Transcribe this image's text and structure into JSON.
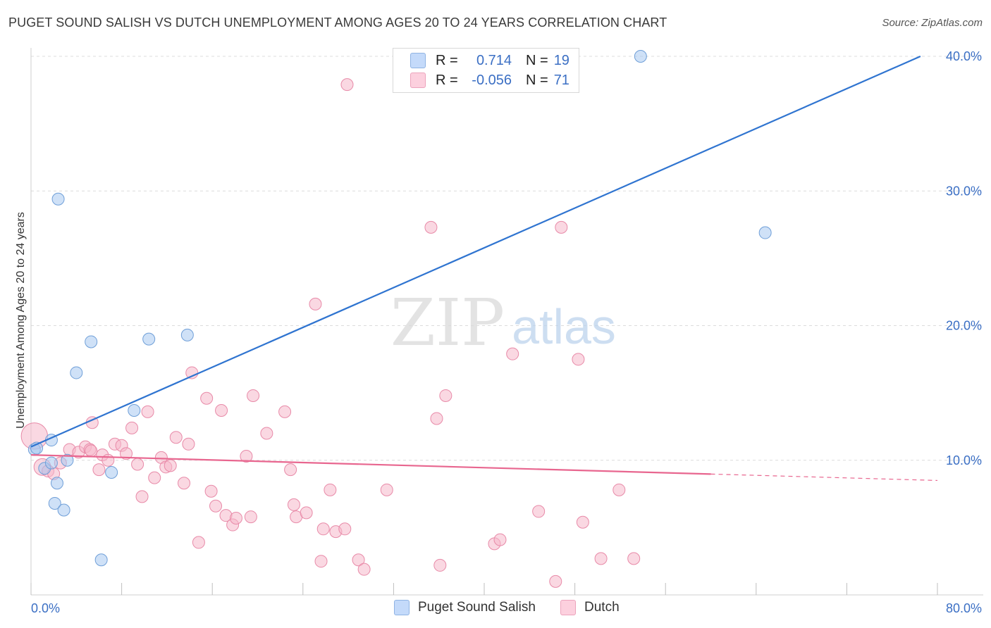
{
  "title": "PUGET SOUND SALISH VS DUTCH UNEMPLOYMENT AMONG AGES 20 TO 24 YEARS CORRELATION CHART",
  "source": "Source: ZipAtlas.com",
  "watermark": {
    "zip": "ZIP",
    "atlas": "atlas"
  },
  "legend_top": {
    "rows": [
      {
        "r_label": "R =",
        "r_value": "0.714",
        "n_label": "N =",
        "n_value": "19",
        "color": "#a8c8f0"
      },
      {
        "r_label": "R =",
        "r_value": "-0.056",
        "n_label": "N =",
        "n_value": "71",
        "color": "#f5b8cb"
      }
    ]
  },
  "legend_bottom": [
    {
      "label": "Puget Sound Salish",
      "color": "#a8c8f0"
    },
    {
      "label": "Dutch",
      "color": "#f5b8cb"
    }
  ],
  "chart_data": {
    "type": "scatter",
    "title": "PUGET SOUND SALISH VS DUTCH UNEMPLOYMENT AMONG AGES 20 TO 24 YEARS CORRELATION CHART",
    "xlabel": "",
    "ylabel": "Unemployment Among Ages 20 to 24 years",
    "xlim": [
      0,
      80
    ],
    "ylim": [
      0,
      40
    ],
    "x_tick_labels": [
      {
        "value": 0,
        "label": "0.0%"
      },
      {
        "value": 80,
        "label": "80.0%"
      }
    ],
    "y_tick_labels": [
      {
        "value": 10,
        "label": "10.0%"
      },
      {
        "value": 20,
        "label": "20.0%"
      },
      {
        "value": 30,
        "label": "30.0%"
      },
      {
        "value": 40,
        "label": "40.0%"
      }
    ],
    "grid": true,
    "series": [
      {
        "name": "Puget Sound Salish",
        "color": "#a8c8f0",
        "stroke": "#6f9fd8",
        "line_color": "#2f74d0",
        "trend": {
          "x0": 0,
          "y0": 11.0,
          "x1": 78.5,
          "y1": 40.0,
          "dashed_from": null
        },
        "points": [
          {
            "x": 0.3,
            "y": 10.8,
            "s": 1
          },
          {
            "x": 0.5,
            "y": 10.9,
            "s": 1
          },
          {
            "x": 1.2,
            "y": 9.4,
            "s": 1
          },
          {
            "x": 1.8,
            "y": 11.5,
            "s": 1
          },
          {
            "x": 2.3,
            "y": 8.3,
            "s": 1
          },
          {
            "x": 1.8,
            "y": 9.8,
            "s": 1
          },
          {
            "x": 2.4,
            "y": 29.4,
            "s": 1
          },
          {
            "x": 2.1,
            "y": 6.8,
            "s": 1
          },
          {
            "x": 2.9,
            "y": 6.3,
            "s": 1
          },
          {
            "x": 3.2,
            "y": 10.0,
            "s": 1
          },
          {
            "x": 4.0,
            "y": 16.5,
            "s": 1
          },
          {
            "x": 5.3,
            "y": 18.8,
            "s": 1
          },
          {
            "x": 6.2,
            "y": 2.6,
            "s": 1
          },
          {
            "x": 7.1,
            "y": 9.1,
            "s": 1
          },
          {
            "x": 9.1,
            "y": 13.7,
            "s": 1
          },
          {
            "x": 10.4,
            "y": 19.0,
            "s": 1
          },
          {
            "x": 13.8,
            "y": 19.3,
            "s": 1
          },
          {
            "x": 53.8,
            "y": 40.0,
            "s": 1
          },
          {
            "x": 64.8,
            "y": 26.9,
            "s": 1
          }
        ]
      },
      {
        "name": "Dutch",
        "color": "#f5b8cb",
        "stroke": "#e88aa8",
        "line_color": "#e8668f",
        "trend": {
          "x0": 0,
          "y0": 10.4,
          "x1": 80,
          "y1": 8.5,
          "dashed_from": 60
        },
        "points": [
          {
            "x": 0.3,
            "y": 11.8,
            "s": 2.2
          },
          {
            "x": 1.0,
            "y": 9.5,
            "s": 1.4
          },
          {
            "x": 1.5,
            "y": 9.2,
            "s": 1
          },
          {
            "x": 2.0,
            "y": 9.0,
            "s": 1
          },
          {
            "x": 2.6,
            "y": 9.8,
            "s": 1
          },
          {
            "x": 3.4,
            "y": 10.8,
            "s": 1
          },
          {
            "x": 4.2,
            "y": 10.6,
            "s": 1
          },
          {
            "x": 4.8,
            "y": 11.0,
            "s": 1
          },
          {
            "x": 5.2,
            "y": 10.8,
            "s": 1
          },
          {
            "x": 5.3,
            "y": 10.7,
            "s": 1
          },
          {
            "x": 5.4,
            "y": 12.8,
            "s": 1
          },
          {
            "x": 6.0,
            "y": 9.3,
            "s": 1
          },
          {
            "x": 6.3,
            "y": 10.4,
            "s": 1
          },
          {
            "x": 6.8,
            "y": 10.0,
            "s": 1
          },
          {
            "x": 7.4,
            "y": 11.2,
            "s": 1
          },
          {
            "x": 8.0,
            "y": 11.1,
            "s": 1
          },
          {
            "x": 8.4,
            "y": 10.5,
            "s": 1
          },
          {
            "x": 8.9,
            "y": 12.4,
            "s": 1
          },
          {
            "x": 9.4,
            "y": 9.7,
            "s": 1
          },
          {
            "x": 9.8,
            "y": 7.3,
            "s": 1
          },
          {
            "x": 10.3,
            "y": 13.6,
            "s": 1
          },
          {
            "x": 10.9,
            "y": 8.7,
            "s": 1
          },
          {
            "x": 11.5,
            "y": 10.2,
            "s": 1
          },
          {
            "x": 11.9,
            "y": 9.5,
            "s": 1
          },
          {
            "x": 12.3,
            "y": 9.6,
            "s": 1
          },
          {
            "x": 12.8,
            "y": 11.7,
            "s": 1
          },
          {
            "x": 13.5,
            "y": 8.3,
            "s": 1
          },
          {
            "x": 13.9,
            "y": 11.2,
            "s": 1
          },
          {
            "x": 14.2,
            "y": 16.5,
            "s": 1
          },
          {
            "x": 14.8,
            "y": 3.9,
            "s": 1
          },
          {
            "x": 15.5,
            "y": 14.6,
            "s": 1
          },
          {
            "x": 15.9,
            "y": 7.7,
            "s": 1
          },
          {
            "x": 16.3,
            "y": 6.6,
            "s": 1
          },
          {
            "x": 16.8,
            "y": 13.7,
            "s": 1
          },
          {
            "x": 17.2,
            "y": 5.9,
            "s": 1
          },
          {
            "x": 17.8,
            "y": 5.2,
            "s": 1
          },
          {
            "x": 18.1,
            "y": 5.7,
            "s": 1
          },
          {
            "x": 19.0,
            "y": 10.3,
            "s": 1
          },
          {
            "x": 19.4,
            "y": 5.8,
            "s": 1
          },
          {
            "x": 19.6,
            "y": 14.8,
            "s": 1
          },
          {
            "x": 20.8,
            "y": 12.0,
            "s": 1
          },
          {
            "x": 22.4,
            "y": 13.6,
            "s": 1
          },
          {
            "x": 22.9,
            "y": 9.3,
            "s": 1
          },
          {
            "x": 23.2,
            "y": 6.7,
            "s": 1
          },
          {
            "x": 23.4,
            "y": 5.8,
            "s": 1
          },
          {
            "x": 24.3,
            "y": 6.1,
            "s": 1
          },
          {
            "x": 25.1,
            "y": 21.6,
            "s": 1
          },
          {
            "x": 25.6,
            "y": 2.5,
            "s": 1
          },
          {
            "x": 25.8,
            "y": 4.9,
            "s": 1
          },
          {
            "x": 26.4,
            "y": 7.8,
            "s": 1
          },
          {
            "x": 26.9,
            "y": 4.7,
            "s": 1
          },
          {
            "x": 27.7,
            "y": 4.9,
            "s": 1
          },
          {
            "x": 27.9,
            "y": 37.9,
            "s": 1
          },
          {
            "x": 28.9,
            "y": 2.6,
            "s": 1
          },
          {
            "x": 29.4,
            "y": 1.9,
            "s": 1
          },
          {
            "x": 31.4,
            "y": 7.8,
            "s": 1
          },
          {
            "x": 35.3,
            "y": 27.3,
            "s": 1
          },
          {
            "x": 35.8,
            "y": 13.1,
            "s": 1
          },
          {
            "x": 36.1,
            "y": 2.2,
            "s": 1
          },
          {
            "x": 36.6,
            "y": 14.8,
            "s": 1
          },
          {
            "x": 40.9,
            "y": 3.8,
            "s": 1
          },
          {
            "x": 41.4,
            "y": 4.1,
            "s": 1
          },
          {
            "x": 42.5,
            "y": 17.9,
            "s": 1
          },
          {
            "x": 44.8,
            "y": 6.2,
            "s": 1
          },
          {
            "x": 46.3,
            "y": 1.0,
            "s": 1
          },
          {
            "x": 46.8,
            "y": 27.3,
            "s": 1
          },
          {
            "x": 48.3,
            "y": 17.5,
            "s": 1
          },
          {
            "x": 48.7,
            "y": 5.4,
            "s": 1
          },
          {
            "x": 50.3,
            "y": 2.7,
            "s": 1
          },
          {
            "x": 51.9,
            "y": 7.8,
            "s": 1
          },
          {
            "x": 53.2,
            "y": 2.7,
            "s": 1
          }
        ]
      }
    ]
  }
}
